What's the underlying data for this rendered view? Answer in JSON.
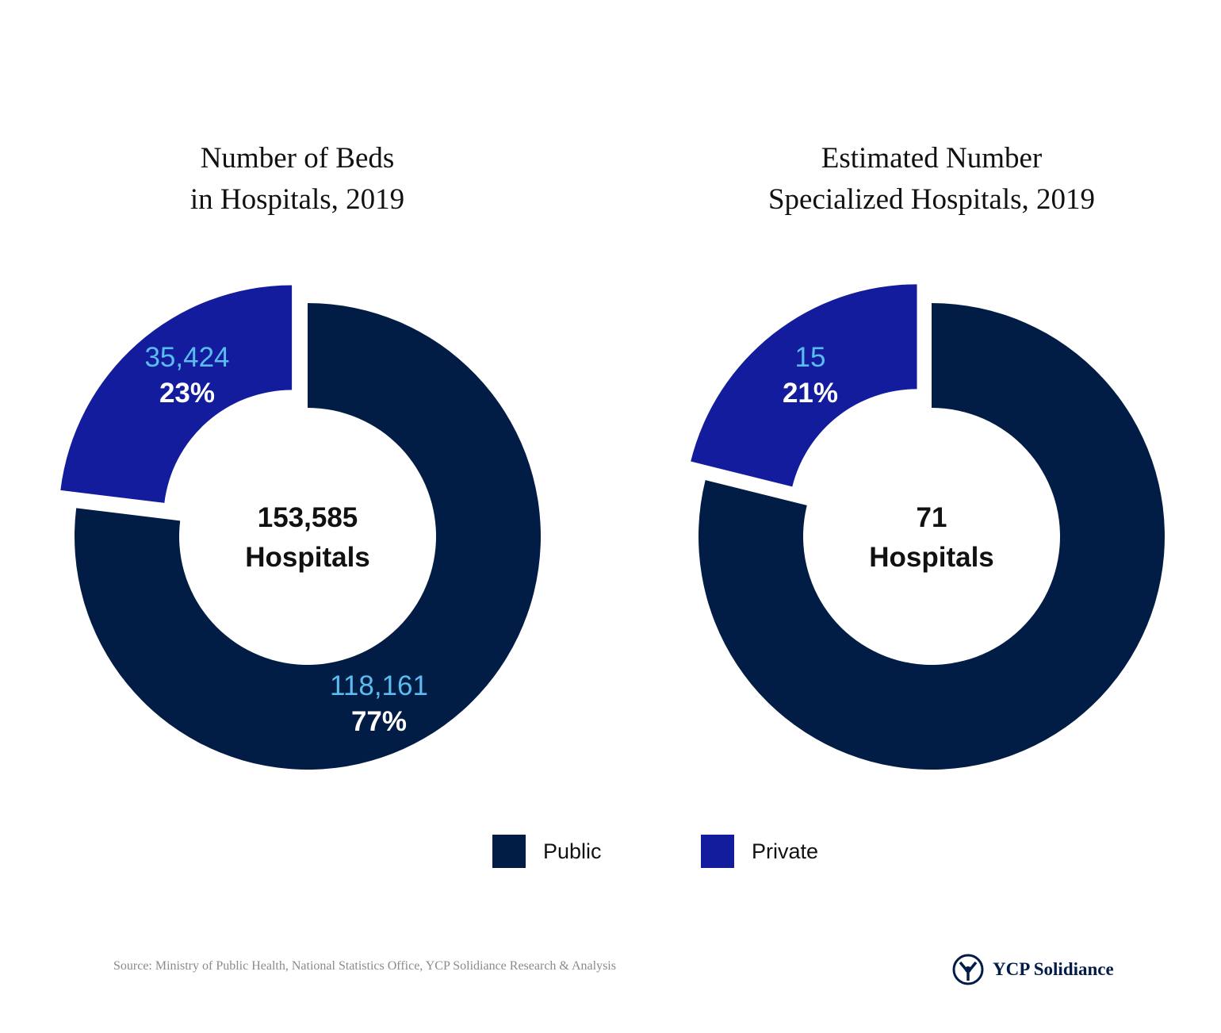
{
  "colors": {
    "public": "#011c45",
    "private": "#131c9c",
    "value_text": "#5bbcf0",
    "percent_text": "#ffffff",
    "center_text": "#111111"
  },
  "chart_data": [
    {
      "type": "pie",
      "title_lines": [
        "Number of Beds",
        "in Hospitals, 2019"
      ],
      "center_lines": [
        "153,585",
        "Hospitals"
      ],
      "slices": [
        {
          "category": "Private",
          "value": 35424,
          "value_label": "35,424",
          "percent_label": "23%",
          "color": "#131c9c"
        },
        {
          "category": "Public",
          "value": 118161,
          "value_label": "118,161",
          "percent_label": "77%",
          "color": "#011c45"
        }
      ]
    },
    {
      "type": "pie",
      "title_lines": [
        "Estimated Number",
        "Specialized Hospitals, 2019"
      ],
      "center_lines": [
        "71",
        "Hospitals"
      ],
      "slices": [
        {
          "category": "Private",
          "value": 15,
          "value_label": "15",
          "percent_label": "21%",
          "color": "#131c9c"
        },
        {
          "category": "Public",
          "value": 56,
          "value_label": "",
          "percent_label": "",
          "color": "#011c45"
        }
      ]
    }
  ],
  "legend": [
    {
      "label": "Public",
      "color": "#011c45"
    },
    {
      "label": "Private",
      "color": "#131c9c"
    }
  ],
  "footer": {
    "source": "Source: Ministry of Public Health, National Statistics Office, YCP Solidiance Research & Analysis",
    "brand": "YCP Solidiance"
  }
}
